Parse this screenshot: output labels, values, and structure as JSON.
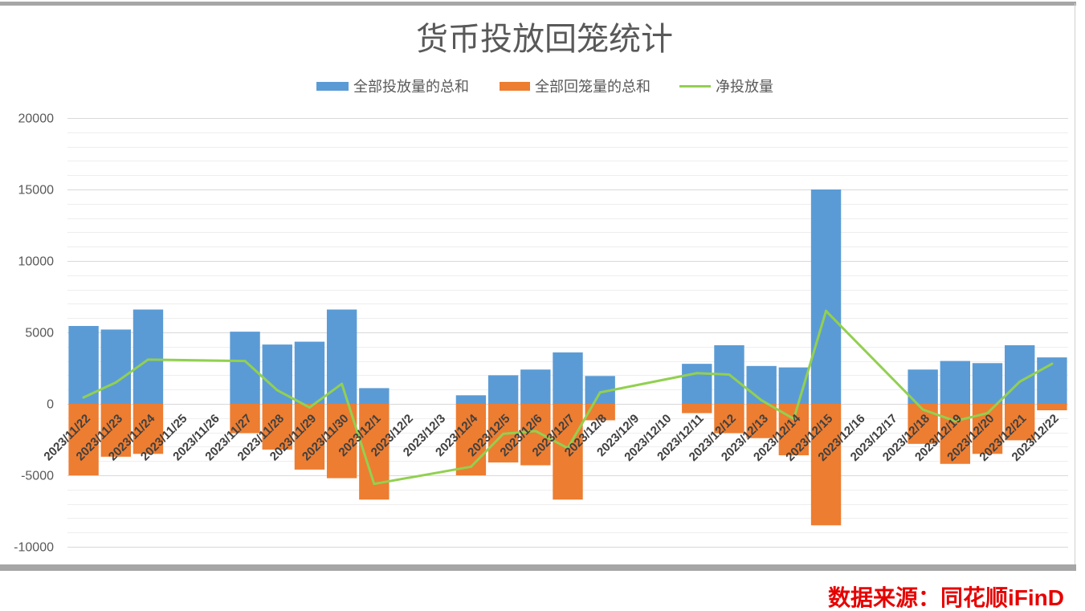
{
  "source_note": "数据来源：同花顺iFinD",
  "colors": {
    "title_text": "#595959",
    "axis_text": "#404040",
    "grid_major": "#d9d9d9",
    "grid_minor": "#eeeeee",
    "frame": "#a6a6a6",
    "source_text": "#e60000"
  },
  "chart_data": {
    "type": "bar",
    "title": "货币投放回笼统计",
    "legend": "top",
    "grid": true,
    "ylim": [
      -10000,
      20000
    ],
    "yticks": [
      20000,
      15000,
      10000,
      5000,
      0,
      -5000,
      -10000
    ],
    "ytick_labels": [
      "20000",
      "15000",
      "10000",
      "5000",
      "0",
      "-5000",
      "-10000"
    ],
    "minor_step": 1000,
    "categories": [
      "2023/11/22",
      "2023/11/23",
      "2023/11/24",
      "2023/11/25",
      "2023/11/26",
      "2023/11/27",
      "2023/11/28",
      "2023/11/29",
      "2023/11/30",
      "2023/12/1",
      "2023/12/2",
      "2023/12/3",
      "2023/12/4",
      "2023/12/5",
      "2023/12/6",
      "2023/12/7",
      "2023/12/8",
      "2023/12/9",
      "2023/12/10",
      "2023/12/11",
      "2023/12/12",
      "2023/12/13",
      "2023/12/14",
      "2023/12/15",
      "2023/12/16",
      "2023/12/17",
      "2023/12/18",
      "2023/12/19",
      "2023/12/20",
      "2023/12/21",
      "2023/12/22"
    ],
    "series": [
      {
        "name": "全部投放量的总和",
        "type": "bar",
        "color": "#5b9bd5",
        "values": [
          5450,
          5200,
          6600,
          null,
          null,
          5050,
          4150,
          4350,
          6600,
          1100,
          null,
          null,
          600,
          2000,
          2400,
          3600,
          1950,
          null,
          null,
          2800,
          4100,
          2650,
          2550,
          15000,
          null,
          null,
          2400,
          3000,
          2850,
          4100,
          3250
        ]
      },
      {
        "name": "全部回笼量的总和",
        "type": "bar",
        "color": "#ed7d31",
        "values": [
          -5000,
          -3700,
          -3500,
          null,
          null,
          -2050,
          -3200,
          -4600,
          -5200,
          -6700,
          null,
          null,
          -5000,
          -4100,
          -4300,
          -6700,
          -1150,
          null,
          null,
          -650,
          -2050,
          -2400,
          -3600,
          -8500,
          null,
          null,
          -2800,
          -4200,
          -3500,
          -2550,
          -450
        ]
      },
      {
        "name": "净投放量",
        "type": "line",
        "color": "#92d050",
        "values": [
          450,
          1500,
          3100,
          null,
          null,
          3000,
          950,
          -250,
          1400,
          -5600,
          null,
          null,
          -4400,
          -2100,
          -1900,
          -3100,
          800,
          null,
          null,
          2150,
          2050,
          250,
          -1050,
          6500,
          null,
          null,
          -400,
          -1200,
          -650,
          1550,
          2800
        ]
      }
    ]
  }
}
